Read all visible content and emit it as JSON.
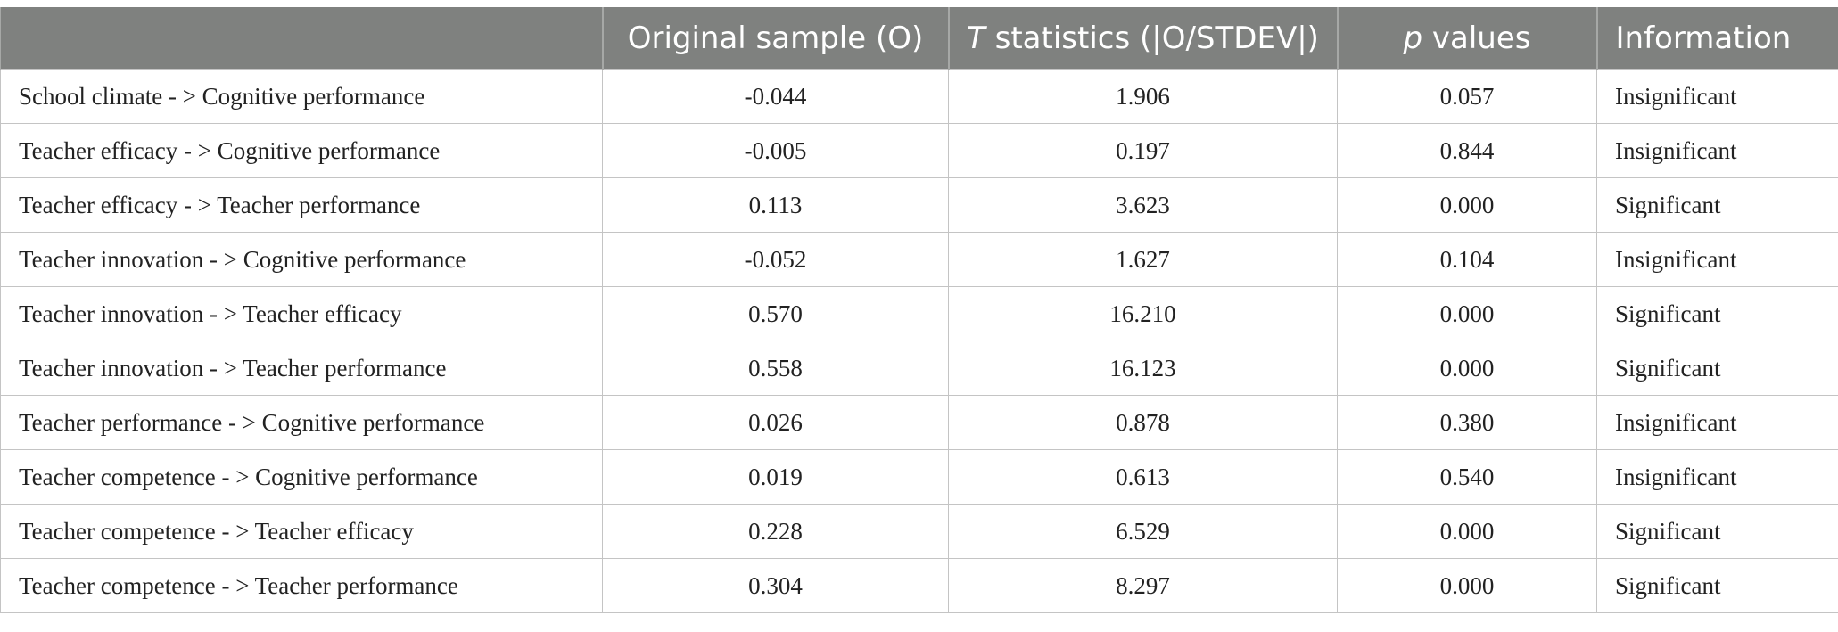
{
  "table": {
    "headers": {
      "path": "",
      "original_sample": "Original sample (O)",
      "t_statistics_italic": "T",
      "t_statistics_rest": " statistics (|O/STDEV|)",
      "p_values_italic": "p",
      "p_values_rest": " values",
      "information": "Information"
    },
    "rows": [
      {
        "path": "School climate - > Cognitive performance",
        "original_sample": "-0.044",
        "t_statistics": "1.906",
        "p_value": "0.057",
        "information": "Insignificant"
      },
      {
        "path": "Teacher efficacy - > Cognitive performance",
        "original_sample": "-0.005",
        "t_statistics": "0.197",
        "p_value": "0.844",
        "information": "Insignificant"
      },
      {
        "path": "Teacher efficacy - > Teacher performance",
        "original_sample": "0.113",
        "t_statistics": "3.623",
        "p_value": "0.000",
        "information": "Significant"
      },
      {
        "path": "Teacher innovation - > Cognitive performance",
        "original_sample": "-0.052",
        "t_statistics": "1.627",
        "p_value": "0.104",
        "information": "Insignificant"
      },
      {
        "path": "Teacher innovation - > Teacher efficacy",
        "original_sample": "0.570",
        "t_statistics": "16.210",
        "p_value": "0.000",
        "information": "Significant"
      },
      {
        "path": "Teacher innovation - > Teacher performance",
        "original_sample": "0.558",
        "t_statistics": "16.123",
        "p_value": "0.000",
        "information": "Significant"
      },
      {
        "path": "Teacher performance - > Cognitive performance",
        "original_sample": "0.026",
        "t_statistics": "0.878",
        "p_value": "0.380",
        "information": "Insignificant"
      },
      {
        "path": "Teacher competence - > Cognitive performance",
        "original_sample": "0.019",
        "t_statistics": "0.613",
        "p_value": "0.540",
        "information": "Insignificant"
      },
      {
        "path": "Teacher competence - > Teacher efficacy",
        "original_sample": "0.228",
        "t_statistics": "6.529",
        "p_value": "0.000",
        "information": "Significant"
      },
      {
        "path": "Teacher competence - > Teacher performance",
        "original_sample": "0.304",
        "t_statistics": "8.297",
        "p_value": "0.000",
        "information": "Significant"
      }
    ]
  }
}
